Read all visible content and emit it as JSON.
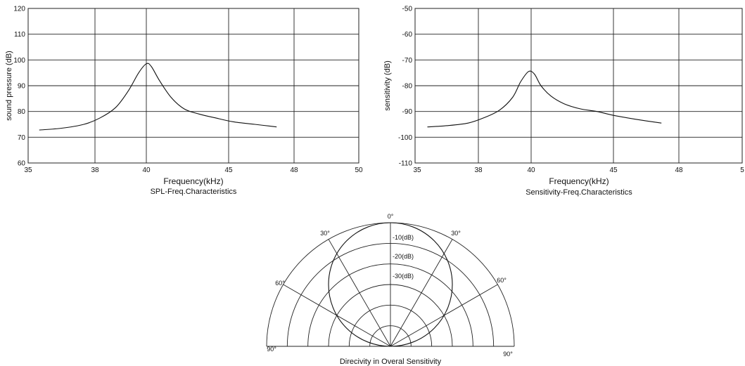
{
  "chart_data": [
    {
      "type": "line",
      "title": "SPL-Freq.Characteristics",
      "xlabel": "Frequency(kHz)",
      "ylabel": "sound  pressure (dB)",
      "x_ticks": [
        "35",
        "38",
        "40",
        "45",
        "48",
        "50"
      ],
      "y_ticks": [
        "60",
        "70",
        "80",
        "90",
        "100",
        "110",
        "120"
      ],
      "ylim": [
        60,
        120
      ],
      "grid": true,
      "series": [
        {
          "x": [
            35.5,
            36.5,
            37.5,
            38.2,
            38.8,
            39.3,
            39.7,
            40.0,
            40.3,
            40.8,
            41.5,
            42.3,
            43.2,
            44.2,
            45.2,
            46.2,
            47.2
          ],
          "values": [
            72.8,
            73.5,
            75.0,
            77.5,
            81.5,
            88.0,
            95.0,
            98.5,
            97.5,
            92.0,
            85.5,
            81.0,
            79.0,
            77.5,
            76.0,
            75.0,
            74.0
          ]
        }
      ]
    },
    {
      "type": "line",
      "title": "Sensitivity-Freq.Characteristics",
      "xlabel": "Frequency(kHz)",
      "ylabel": "sensitivity (dB)",
      "x_ticks": [
        "35",
        "38",
        "40",
        "45",
        "48",
        "5"
      ],
      "y_ticks": [
        "-50",
        "-60",
        "-70",
        "-80",
        "-90",
        "-100",
        "-110"
      ],
      "ylim": [
        -110,
        -50
      ],
      "grid": true,
      "series": [
        {
          "x": [
            35.5,
            36.5,
            37.5,
            38.2,
            38.8,
            39.3,
            39.6,
            39.9,
            40.2,
            40.6,
            41.2,
            42.0,
            43.0,
            44.0,
            45.0,
            46.0,
            47.2
          ],
          "values": [
            -96.0,
            -95.5,
            -94.5,
            -92.5,
            -89.5,
            -84.5,
            -78.5,
            -74.5,
            -75.5,
            -80.0,
            -84.0,
            -87.0,
            -89.0,
            -90.0,
            -91.5,
            -93.0,
            -94.5
          ]
        }
      ]
    },
    {
      "type": "polar",
      "title": "Direcivity in Overal Sensitivity",
      "angle_labels": [
        "0°",
        "30°",
        "30°",
        "60°",
        "60°",
        "90°",
        "90°"
      ],
      "ring_labels": [
        "-10(dB)",
        "-20(dB)",
        "-30(dB)"
      ],
      "rings": 6,
      "radial_angles_deg": [
        -90,
        -60,
        -30,
        0,
        30,
        60,
        90
      ]
    }
  ]
}
